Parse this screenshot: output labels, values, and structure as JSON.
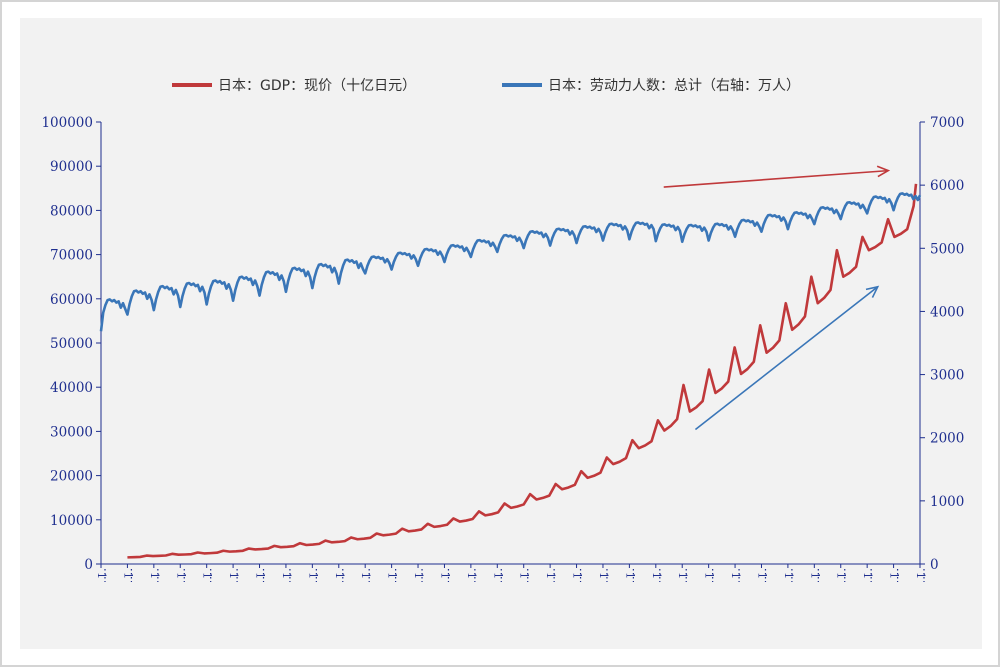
{
  "chart_data": {
    "type": "line",
    "legend": {
      "placement": "top",
      "entries": [
        {
          "label": "日本：GDP：现价（十亿日元）",
          "color": "#c0393b"
        },
        {
          "label": "日本：劳动力人数：总计（右轴：万人）",
          "color": "#3a76b8"
        }
      ]
    },
    "left_axis": {
      "ylim": [
        0,
        100000
      ],
      "ticks": [
        "0",
        "10000",
        "20000",
        "30000",
        "40000",
        "50000",
        "60000",
        "70000",
        "80000",
        "90000",
        "100000"
      ]
    },
    "right_axis": {
      "ylim": [
        0,
        7000
      ],
      "ticks": [
        "0",
        "1000",
        "2000",
        "3000",
        "4000",
        "5000",
        "6000",
        "7000"
      ]
    },
    "x_tick_label": "1",
    "x_tick_count": 32,
    "grid": false,
    "series": [
      {
        "name": "日本：GDP：现价（十亿日元）",
        "axis": "left",
        "color": "#c0393b",
        "annual_start_levels": [
          1500,
          1800,
          2100,
          2400,
          2800,
          3300,
          3800,
          4300,
          4900,
          5600,
          6500,
          7400,
          8400,
          9600,
          11000,
          12700,
          14600,
          16900,
          19500,
          22600,
          26200,
          30200,
          34500,
          38700,
          43000,
          47800,
          53000,
          59000,
          65000,
          71000,
          74000
        ],
        "annual_peak_levels": [
          1900,
          2300,
          2600,
          3000,
          3500,
          4100,
          4700,
          5300,
          6000,
          6900,
          8000,
          9100,
          10300,
          11900,
          13700,
          15800,
          18100,
          21000,
          24100,
          28000,
          32500,
          40500,
          44000,
          49000,
          54000,
          59000,
          65000,
          71000,
          74000,
          78000,
          81000
        ],
        "final_value": 86000
      },
      {
        "name": "日本：劳动力人数：总计（右轴：万人）",
        "axis": "right",
        "color": "#3a76b8",
        "annual_levels": [
          4120,
          4260,
          4330,
          4380,
          4420,
          4480,
          4560,
          4620,
          4680,
          4750,
          4820,
          4880,
          4940,
          5000,
          5080,
          5160,
          5220,
          5260,
          5300,
          5340,
          5360,
          5330,
          5320,
          5340,
          5400,
          5480,
          5520,
          5600,
          5680,
          5770,
          5820
        ],
        "end_value": 5840
      }
    ],
    "annotations": [
      {
        "type": "arrow",
        "color": "#c0393b",
        "from": {
          "x_index": 21.3,
          "y_right": 5970
        },
        "to": {
          "x_index": 29.8,
          "y_right": 6230
        }
      },
      {
        "type": "arrow",
        "color": "#3a76b8",
        "from": {
          "x_index": 22.5,
          "y_right": 2130
        },
        "to": {
          "x_index": 29.4,
          "y_right": 4390
        }
      }
    ]
  }
}
